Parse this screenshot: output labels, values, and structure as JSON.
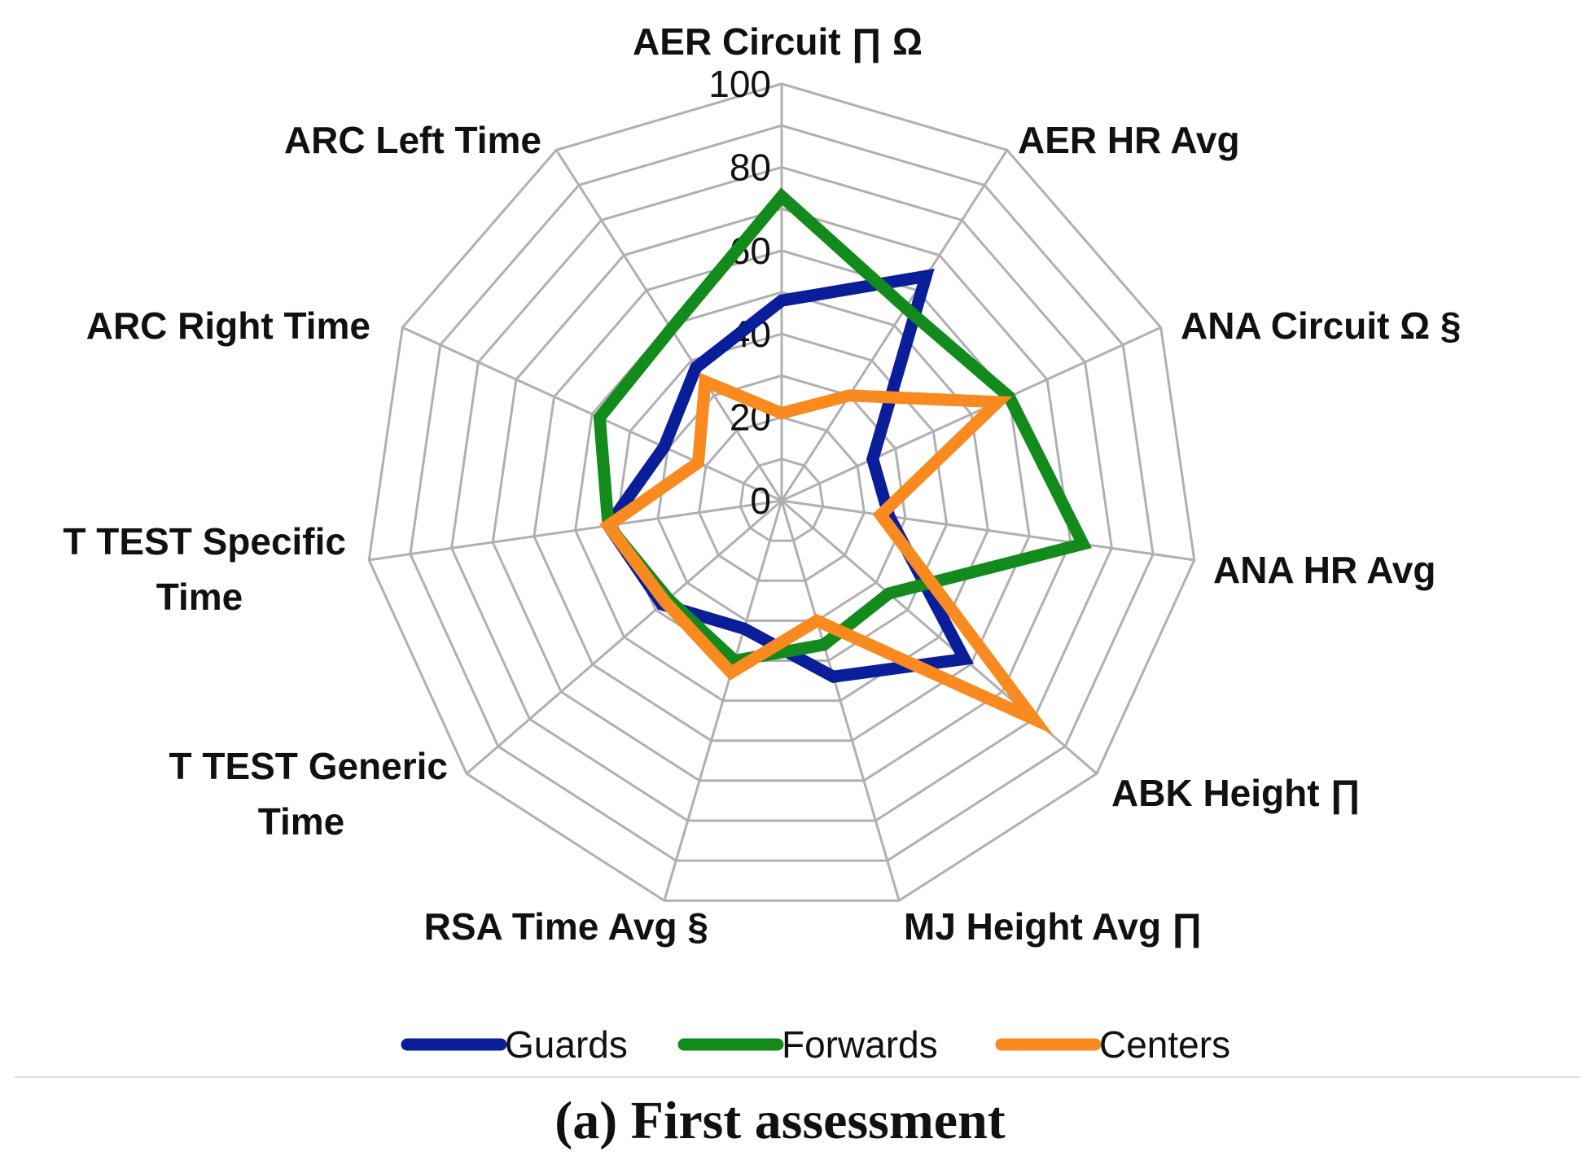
{
  "chart_data": {
    "type": "radar",
    "axes": [
      {
        "label": [
          "AER Circuit ∏ Ω"
        ]
      },
      {
        "label": [
          "AER HR Avg"
        ]
      },
      {
        "label": [
          "ANA Circuit  Ω  §"
        ]
      },
      {
        "label": [
          "ANA HR Avg"
        ]
      },
      {
        "label": [
          "ABK Height  ∏"
        ]
      },
      {
        "label": [
          "MJ Height Avg  ∏"
        ]
      },
      {
        "label": [
          "RSA Time Avg  §"
        ]
      },
      {
        "label": [
          "T TEST Generic",
          "Time"
        ]
      },
      {
        "label": [
          "T TEST Specific",
          "Time"
        ]
      },
      {
        "label": [
          "ARC Right Time"
        ]
      },
      {
        "label": [
          "ARC Left Time"
        ]
      }
    ],
    "rlim": [
      0,
      100
    ],
    "ticks": [
      "0",
      "20",
      "40",
      "60",
      "80",
      "100"
    ],
    "series": [
      {
        "name": "Guards",
        "color": "#0a1e9a",
        "values": [
          48,
          64,
          24,
          26,
          58,
          44,
          32,
          38,
          42,
          31,
          38
        ]
      },
      {
        "name": "Forwards",
        "color": "#128a1c",
        "values": [
          73,
          55,
          60,
          73,
          34,
          36,
          40,
          36,
          42,
          48,
          49
        ]
      },
      {
        "name": "Centers",
        "color": "#f98a1f",
        "values": [
          21,
          30,
          57,
          24,
          80,
          30,
          43,
          37,
          42,
          22,
          34
        ]
      }
    ],
    "caption": "(a) First assessment"
  }
}
